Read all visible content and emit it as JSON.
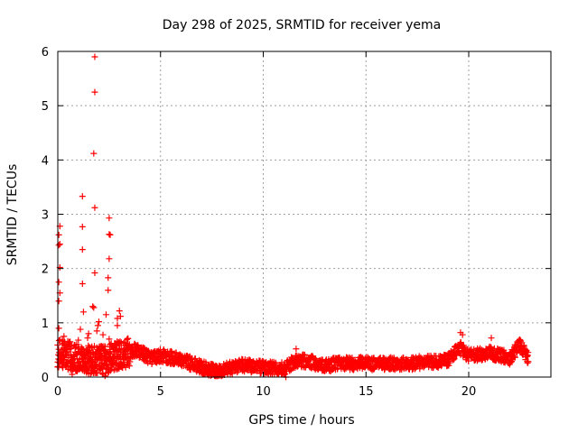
{
  "chart_data": {
    "type": "scatter",
    "title": "Day 298 of 2025, SRMTID for receiver yema",
    "xlabel": "GPS time / hours",
    "ylabel": "SRMTID / TECUs",
    "xlim": [
      0,
      24
    ],
    "ylim": [
      0,
      6
    ],
    "x_ticks": [
      0,
      5,
      10,
      15,
      20
    ],
    "y_ticks": [
      0,
      1,
      2,
      3,
      4,
      5,
      6
    ],
    "x_tick_labels": [
      "0",
      "5",
      "10",
      "15",
      "20"
    ],
    "y_tick_labels": [
      "0",
      "1",
      "2",
      "3",
      "4",
      "5",
      "6"
    ],
    "grid": true,
    "marker": "+",
    "series": [
      {
        "name": "SRMTID",
        "color": "#ff0000",
        "highlight_points": [
          {
            "x": 1.8,
            "y": 5.9
          },
          {
            "x": 1.8,
            "y": 5.25
          },
          {
            "x": 1.75,
            "y": 4.12
          },
          {
            "x": 1.2,
            "y": 3.33
          },
          {
            "x": 1.8,
            "y": 3.12
          },
          {
            "x": 2.5,
            "y": 2.93
          },
          {
            "x": 0.1,
            "y": 2.78
          },
          {
            "x": 1.2,
            "y": 2.77
          },
          {
            "x": 0.05,
            "y": 2.62
          },
          {
            "x": 2.5,
            "y": 2.63
          },
          {
            "x": 2.55,
            "y": 2.62
          },
          {
            "x": 0.1,
            "y": 2.45
          },
          {
            "x": 0.05,
            "y": 2.43
          },
          {
            "x": 1.2,
            "y": 2.35
          },
          {
            "x": 2.5,
            "y": 2.18
          },
          {
            "x": 0.1,
            "y": 2.02
          },
          {
            "x": 1.8,
            "y": 1.92
          },
          {
            "x": 2.45,
            "y": 1.83
          },
          {
            "x": 0.05,
            "y": 1.75
          },
          {
            "x": 1.2,
            "y": 1.72
          },
          {
            "x": 2.45,
            "y": 1.6
          },
          {
            "x": 0.1,
            "y": 1.55
          },
          {
            "x": 0.05,
            "y": 1.4
          },
          {
            "x": 1.7,
            "y": 1.3
          },
          {
            "x": 1.75,
            "y": 1.28
          },
          {
            "x": 3.0,
            "y": 1.22
          },
          {
            "x": 1.25,
            "y": 1.2
          },
          {
            "x": 2.35,
            "y": 1.15
          },
          {
            "x": 3.05,
            "y": 1.12
          },
          {
            "x": 2.9,
            "y": 1.08
          },
          {
            "x": 2.0,
            "y": 1.02
          },
          {
            "x": 1.95,
            "y": 0.95
          },
          {
            "x": 2.9,
            "y": 0.95
          },
          {
            "x": 0.05,
            "y": 0.9
          },
          {
            "x": 1.1,
            "y": 0.88
          },
          {
            "x": 1.9,
            "y": 0.85
          },
          {
            "x": 1.5,
            "y": 0.8
          },
          {
            "x": 2.2,
            "y": 0.78
          },
          {
            "x": 0.3,
            "y": 0.75
          },
          {
            "x": 1.45,
            "y": 0.72
          },
          {
            "x": 2.5,
            "y": 0.7
          },
          {
            "x": 1.0,
            "y": 0.68
          },
          {
            "x": 0.6,
            "y": 0.65
          },
          {
            "x": 2.6,
            "y": 0.62
          },
          {
            "x": 19.6,
            "y": 0.82
          },
          {
            "x": 19.7,
            "y": 0.78
          },
          {
            "x": 21.1,
            "y": 0.72
          },
          {
            "x": 22.5,
            "y": 0.68
          },
          {
            "x": 11.6,
            "y": 0.52
          },
          {
            "x": 2.3,
            "y": 0.02
          },
          {
            "x": 2.2,
            "y": 0.05
          },
          {
            "x": 0.7,
            "y": 0.05
          },
          {
            "x": 11.1,
            "y": 0.0
          },
          {
            "x": 1.4,
            "y": 0.08
          },
          {
            "x": 1.5,
            "y": 0.06
          },
          {
            "x": 7.6,
            "y": 0.05
          },
          {
            "x": 7.9,
            "y": 0.03
          }
        ],
        "baseline_profile": [
          {
            "x": 0.0,
            "y": 0.45
          },
          {
            "x": 1.0,
            "y": 0.35
          },
          {
            "x": 2.0,
            "y": 0.3
          },
          {
            "x": 3.0,
            "y": 0.4
          },
          {
            "x": 3.8,
            "y": 0.5
          },
          {
            "x": 4.5,
            "y": 0.35
          },
          {
            "x": 5.0,
            "y": 0.4
          },
          {
            "x": 6.0,
            "y": 0.32
          },
          {
            "x": 7.0,
            "y": 0.18
          },
          {
            "x": 7.8,
            "y": 0.1
          },
          {
            "x": 8.5,
            "y": 0.18
          },
          {
            "x": 9.0,
            "y": 0.22
          },
          {
            "x": 10.0,
            "y": 0.18
          },
          {
            "x": 11.0,
            "y": 0.15
          },
          {
            "x": 11.5,
            "y": 0.28
          },
          {
            "x": 12.0,
            "y": 0.3
          },
          {
            "x": 13.0,
            "y": 0.22
          },
          {
            "x": 14.0,
            "y": 0.25
          },
          {
            "x": 15.0,
            "y": 0.25
          },
          {
            "x": 16.0,
            "y": 0.25
          },
          {
            "x": 17.0,
            "y": 0.25
          },
          {
            "x": 18.0,
            "y": 0.28
          },
          {
            "x": 19.0,
            "y": 0.3
          },
          {
            "x": 19.5,
            "y": 0.55
          },
          {
            "x": 20.0,
            "y": 0.4
          },
          {
            "x": 21.0,
            "y": 0.45
          },
          {
            "x": 22.0,
            "y": 0.35
          },
          {
            "x": 22.5,
            "y": 0.6
          },
          {
            "x": 22.9,
            "y": 0.35
          }
        ],
        "spread": 0.12,
        "sampling_interval_hours": 0.025
      }
    ]
  }
}
